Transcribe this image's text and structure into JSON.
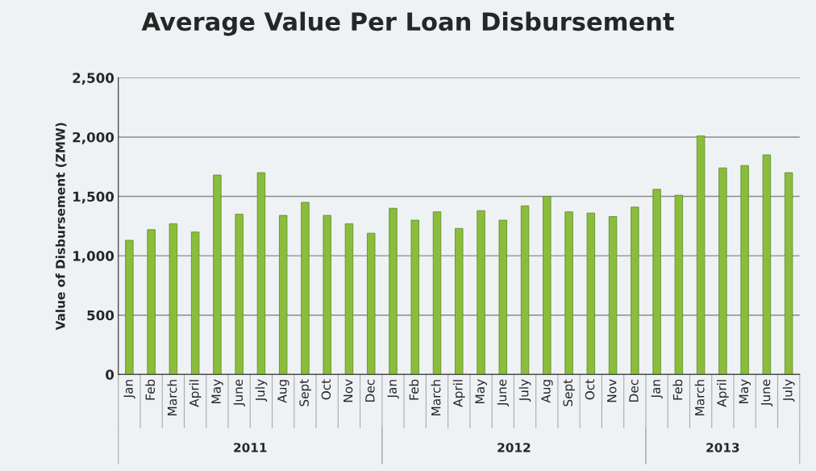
{
  "chart_data": {
    "type": "bar",
    "title": "Average Value Per Loan Disbursement",
    "ylabel": "Value of Disbursement (ZMW)",
    "categories": [
      "Jan",
      "Feb",
      "March",
      "April",
      "May",
      "June",
      "July",
      "Aug",
      "Sept",
      "Oct",
      "Nov",
      "Dec",
      "Jan",
      "Feb",
      "March",
      "April",
      "May",
      "June",
      "July",
      "Aug",
      "Sept",
      "Oct",
      "Nov",
      "Dec",
      "Jan",
      "Feb",
      "March",
      "April",
      "May",
      "June",
      "July"
    ],
    "values": [
      1130,
      1220,
      1270,
      1200,
      1680,
      1350,
      1700,
      1340,
      1450,
      1340,
      1270,
      1190,
      1400,
      1300,
      1370,
      1230,
      1380,
      1300,
      1420,
      1500,
      1370,
      1360,
      1330,
      1410,
      1560,
      1510,
      2010,
      1740,
      1760,
      1850,
      1700
    ],
    "color": "#8bbd3c",
    "ylim": [
      0,
      2500
    ],
    "yticks": [
      0,
      {
        "value": 500,
        "label": "500"
      },
      {
        "value": 1000,
        "label": "1,000"
      },
      {
        "value": 1500,
        "label": "1,500"
      },
      {
        "value": 2000,
        "label": "2,000"
      },
      {
        "value": 2500,
        "label": "2,500"
      }
    ],
    "grid": "y",
    "annotations": [
      "2011",
      "2012",
      "2013"
    ]
  }
}
